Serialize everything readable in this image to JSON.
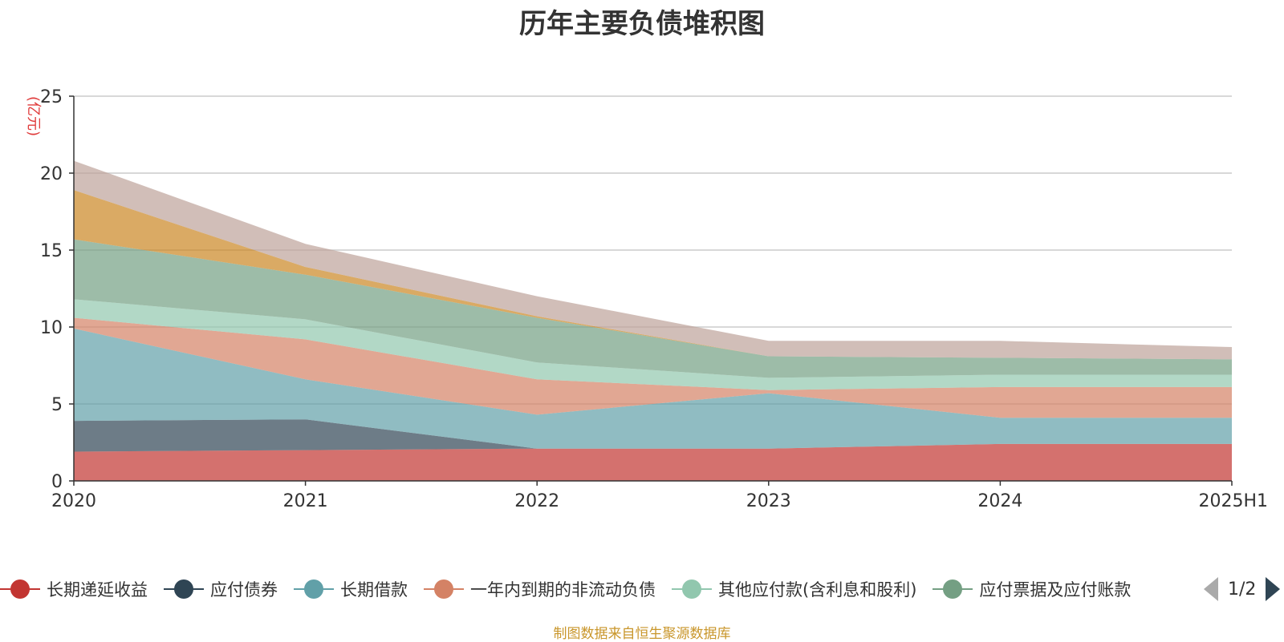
{
  "title": "历年主要负债堆积图",
  "source_note": "制图数据来自恒生聚源数据库",
  "legend_pager": {
    "text": "1/2"
  },
  "chart_data": {
    "type": "area",
    "stacked": true,
    "title": "历年主要负债堆积图",
    "ylabel": "(亿元)",
    "ylabel_color": "#e03c3c",
    "ylim": [
      0,
      25
    ],
    "yticks": [
      0,
      5,
      10,
      15,
      20,
      25
    ],
    "categories": [
      "2020",
      "2021",
      "2022",
      "2023",
      "2024",
      "2025H1"
    ],
    "grid": true,
    "legend_position": "bottom",
    "series": [
      {
        "name": "长期递延收益",
        "color": "#c23531",
        "values": [
          1.9,
          2.0,
          2.1,
          2.1,
          2.4,
          2.4
        ]
      },
      {
        "name": "应付债券",
        "color": "#2f4554",
        "values": [
          2.0,
          2.0,
          0,
          0,
          0,
          0
        ]
      },
      {
        "name": "长期借款",
        "color": "#61a0a8",
        "values": [
          6.0,
          2.6,
          2.2,
          3.6,
          1.7,
          1.7
        ]
      },
      {
        "name": "一年内到期的非流动负债",
        "color": "#d48265",
        "values": [
          0.7,
          2.6,
          2.3,
          0.2,
          2.0,
          2.0
        ]
      },
      {
        "name": "其他应付款(含利息和股利)",
        "color": "#91c7ae",
        "values": [
          1.2,
          1.3,
          1.1,
          0.8,
          0.8,
          0.8
        ]
      },
      {
        "name": "应付票据及应付账款",
        "color": "#749f83",
        "values": [
          3.9,
          2.9,
          2.9,
          1.4,
          1.1,
          1.0
        ]
      },
      {
        "name": "",
        "color": "#ca8622",
        "values": [
          3.2,
          0.5,
          0.1,
          0,
          0,
          0
        ]
      },
      {
        "name": "",
        "color": "#bda29a",
        "values": [
          1.9,
          1.5,
          1.3,
          1.0,
          1.1,
          0.8
        ]
      }
    ]
  }
}
